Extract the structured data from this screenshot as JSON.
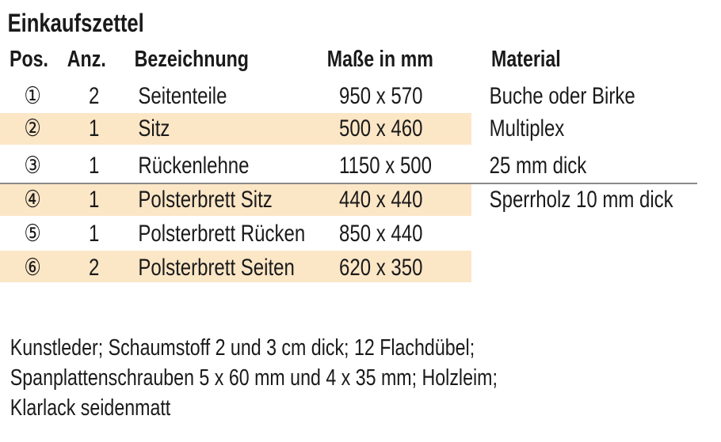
{
  "title": "Einkaufszettel",
  "headers": {
    "pos": "Pos.",
    "anz": "Anz.",
    "bezeichnung": "Bezeichnung",
    "masse": "Maße in mm",
    "material": "Material"
  },
  "rows": [
    {
      "pos": "①",
      "anz": "2",
      "bezeichnung": "Seitenteile",
      "masse": "950 x 570",
      "material": "Buche oder Birke",
      "highlighted": false
    },
    {
      "pos": "②",
      "anz": "1",
      "bezeichnung": "Sitz",
      "masse": "500 x 460",
      "material": "Multiplex",
      "highlighted": true
    },
    {
      "pos": "③",
      "anz": "1",
      "bezeichnung": "Rückenlehne",
      "masse": "1150 x 500",
      "material": "25 mm dick",
      "highlighted": false
    },
    {
      "pos": "④",
      "anz": "1",
      "bezeichnung": "Polsterbrett Sitz",
      "masse": "440 x 440",
      "material": "Sperrholz 10 mm dick",
      "highlighted": true
    },
    {
      "pos": "⑤",
      "anz": "1",
      "bezeichnung": "Polsterbrett Rücken",
      "masse": "850 x 440",
      "material": "",
      "highlighted": false
    },
    {
      "pos": "⑥",
      "anz": "2",
      "bezeichnung": "Polsterbrett Seiten",
      "masse": "620 x 350",
      "material": "",
      "highlighted": true
    }
  ],
  "notes": [
    "Kunstleder; Schaumstoff 2 und 3 cm dick; 12 Flachdübel;",
    "Spanplattenschrauben 5 x 60 mm und 4 x 35 mm; Holzleim;",
    "Klarlack seidenmatt"
  ],
  "colors": {
    "highlight": "#fbe6c6",
    "rule": "#8a8a8a",
    "text": "#1a1a1a"
  }
}
